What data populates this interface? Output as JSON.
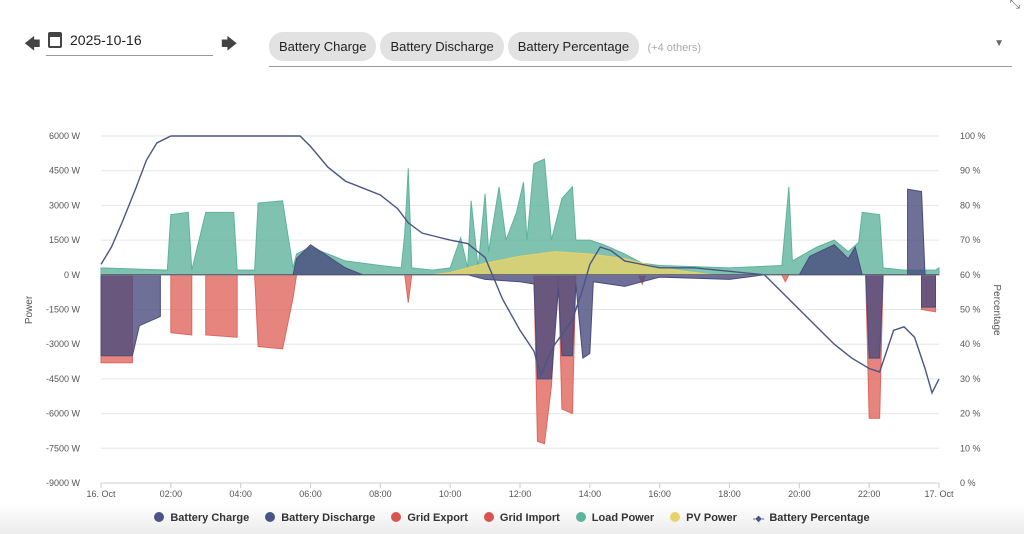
{
  "header": {
    "date": "2025-10-16",
    "prev": "prev-day",
    "next": "next-day",
    "chips": [
      "Battery Charge",
      "Battery Discharge",
      "Battery Percentage"
    ],
    "others": "(+4 others)"
  },
  "chart_data": {
    "type": "area",
    "xlabel": "",
    "ylabel": "Power",
    "y2label": "Percentage",
    "xlim": [
      0,
      24
    ],
    "ylim": [
      -9000,
      6000
    ],
    "y2lim": [
      0,
      100
    ],
    "xticks": [
      {
        "h": 0,
        "label": "16. Oct"
      },
      {
        "h": 2,
        "label": "02:00"
      },
      {
        "h": 4,
        "label": "04:00"
      },
      {
        "h": 6,
        "label": "06:00"
      },
      {
        "h": 8,
        "label": "08:00"
      },
      {
        "h": 10,
        "label": "10:00"
      },
      {
        "h": 12,
        "label": "12:00"
      },
      {
        "h": 14,
        "label": "14:00"
      },
      {
        "h": 16,
        "label": "16:00"
      },
      {
        "h": 18,
        "label": "18:00"
      },
      {
        "h": 20,
        "label": "20:00"
      },
      {
        "h": 22,
        "label": "22:00"
      },
      {
        "h": 24,
        "label": "17. Oct"
      }
    ],
    "yticks": [
      {
        "v": 6000,
        "label": "6000 W"
      },
      {
        "v": 4500,
        "label": "4500 W"
      },
      {
        "v": 3000,
        "label": "3000 W"
      },
      {
        "v": 1500,
        "label": "1500 W"
      },
      {
        "v": 0,
        "label": "0 W"
      },
      {
        "v": -1500,
        "label": "-1500 W"
      },
      {
        "v": -3000,
        "label": "-3000 W"
      },
      {
        "v": -4500,
        "label": "-4500 W"
      },
      {
        "v": -6000,
        "label": "-6000 W"
      },
      {
        "v": -7500,
        "label": "-7500 W"
      },
      {
        "v": -9000,
        "label": "-9000 W"
      }
    ],
    "y2ticks": [
      {
        "v": 100,
        "label": "100 %"
      },
      {
        "v": 90,
        "label": "90 %"
      },
      {
        "v": 80,
        "label": "80 %"
      },
      {
        "v": 70,
        "label": "70 %"
      },
      {
        "v": 60,
        "label": "60 %"
      },
      {
        "v": 50,
        "label": "50 %"
      },
      {
        "v": 40,
        "label": "40 %"
      },
      {
        "v": 30,
        "label": "30 %"
      },
      {
        "v": 20,
        "label": "20 %"
      },
      {
        "v": 10,
        "label": "10 %"
      },
      {
        "v": 0,
        "label": "0 %"
      }
    ],
    "series": [
      {
        "name": "Grid Import",
        "color": "#e0655e",
        "axis": "power",
        "points": [
          [
            0,
            0
          ],
          [
            0,
            -3800
          ],
          [
            0.9,
            -3800
          ],
          [
            0.9,
            0
          ],
          [
            2,
            0
          ],
          [
            2,
            -2500
          ],
          [
            2.6,
            -2600
          ],
          [
            2.6,
            0
          ],
          [
            3,
            0
          ],
          [
            3,
            -2600
          ],
          [
            3.9,
            -2700
          ],
          [
            3.9,
            0
          ],
          [
            4.4,
            0
          ],
          [
            4.5,
            -3100
          ],
          [
            5.2,
            -3200
          ],
          [
            5.5,
            -1000
          ],
          [
            5.6,
            0
          ],
          [
            8.7,
            0
          ],
          [
            8.8,
            -1200
          ],
          [
            8.9,
            0
          ],
          [
            12.4,
            0
          ],
          [
            12.5,
            -7200
          ],
          [
            12.7,
            -7300
          ],
          [
            12.9,
            -4800
          ],
          [
            13.1,
            0
          ],
          [
            13.2,
            -5800
          ],
          [
            13.5,
            -6000
          ],
          [
            13.6,
            0
          ],
          [
            15.4,
            0
          ],
          [
            15.5,
            -400
          ],
          [
            15.6,
            0
          ],
          [
            19.5,
            0
          ],
          [
            19.6,
            -300
          ],
          [
            19.7,
            0
          ],
          [
            21.9,
            0
          ],
          [
            22,
            -6200
          ],
          [
            22.3,
            -6200
          ],
          [
            22.4,
            0
          ],
          [
            23.5,
            0
          ],
          [
            23.5,
            -1500
          ],
          [
            23.9,
            -1600
          ],
          [
            23.9,
            0
          ]
        ]
      },
      {
        "name": "Battery Discharge",
        "color": "#4a4c7e",
        "axis": "power",
        "points": [
          [
            0,
            0
          ],
          [
            0,
            -3500
          ],
          [
            0.9,
            -3500
          ],
          [
            1.1,
            -2200
          ],
          [
            1.7,
            -1800
          ],
          [
            1.7,
            0
          ],
          [
            10.5,
            0
          ],
          [
            11,
            -200
          ],
          [
            12,
            -300
          ],
          [
            12.4,
            -400
          ],
          [
            12.5,
            -4500
          ],
          [
            12.9,
            -4500
          ],
          [
            13.1,
            -600
          ],
          [
            13.2,
            -3500
          ],
          [
            13.5,
            -3500
          ],
          [
            13.6,
            -400
          ],
          [
            13.8,
            -3600
          ],
          [
            14,
            -3400
          ],
          [
            14.1,
            -300
          ],
          [
            15,
            -500
          ],
          [
            16,
            -100
          ],
          [
            18,
            -200
          ],
          [
            19,
            0
          ],
          [
            21.9,
            0
          ],
          [
            22,
            -3600
          ],
          [
            22.3,
            -3600
          ],
          [
            22.4,
            0
          ],
          [
            23.5,
            0
          ],
          [
            23.5,
            -1400
          ],
          [
            23.9,
            -1400
          ],
          [
            23.9,
            0
          ]
        ]
      },
      {
        "name": "Load Power",
        "color": "#5fb39b",
        "axis": "power",
        "points": [
          [
            0,
            0
          ],
          [
            0,
            300
          ],
          [
            1.9,
            200
          ],
          [
            2,
            2600
          ],
          [
            2.5,
            2700
          ],
          [
            2.6,
            200
          ],
          [
            3,
            2700
          ],
          [
            3.8,
            2700
          ],
          [
            3.9,
            200
          ],
          [
            4.4,
            200
          ],
          [
            4.5,
            3100
          ],
          [
            5.2,
            3200
          ],
          [
            5.5,
            300
          ],
          [
            5.6,
            900
          ],
          [
            6,
            1200
          ],
          [
            6.5,
            900
          ],
          [
            7,
            600
          ],
          [
            8,
            400
          ],
          [
            8.6,
            300
          ],
          [
            8.7,
            1800
          ],
          [
            8.8,
            4600
          ],
          [
            8.9,
            300
          ],
          [
            9.5,
            200
          ],
          [
            10,
            300
          ],
          [
            10.3,
            1600
          ],
          [
            10.5,
            300
          ],
          [
            10.6,
            3200
          ],
          [
            10.8,
            300
          ],
          [
            11,
            3500
          ],
          [
            11.1,
            1000
          ],
          [
            11.4,
            3800
          ],
          [
            11.6,
            1500
          ],
          [
            11.9,
            2700
          ],
          [
            12.1,
            4000
          ],
          [
            12.2,
            1500
          ],
          [
            12.4,
            4800
          ],
          [
            12.7,
            5000
          ],
          [
            12.9,
            1500
          ],
          [
            13.2,
            3300
          ],
          [
            13.5,
            3800
          ],
          [
            13.6,
            1500
          ],
          [
            14,
            1500
          ],
          [
            14.4,
            1300
          ],
          [
            15,
            900
          ],
          [
            15.5,
            500
          ],
          [
            16,
            400
          ],
          [
            18,
            300
          ],
          [
            19.5,
            400
          ],
          [
            19.7,
            3800
          ],
          [
            19.8,
            600
          ],
          [
            20.5,
            1200
          ],
          [
            21,
            1500
          ],
          [
            21.4,
            1000
          ],
          [
            21.7,
            1400
          ],
          [
            21.8,
            2700
          ],
          [
            22.3,
            2600
          ],
          [
            22.4,
            300
          ],
          [
            23,
            200
          ],
          [
            23.9,
            200
          ],
          [
            24,
            300
          ],
          [
            24,
            0
          ]
        ]
      },
      {
        "name": "PV Power",
        "color": "#e8d36a",
        "axis": "power",
        "points": [
          [
            0,
            0
          ],
          [
            9.5,
            0
          ],
          [
            10,
            100
          ],
          [
            11,
            500
          ],
          [
            12,
            800
          ],
          [
            13,
            1000
          ],
          [
            14,
            900
          ],
          [
            15,
            700
          ],
          [
            16,
            300
          ],
          [
            17,
            100
          ],
          [
            17.5,
            0
          ],
          [
            24,
            0
          ]
        ]
      },
      {
        "name": "Battery Charge",
        "color": "#4a4c7e",
        "axis": "power",
        "points": [
          [
            0,
            0
          ],
          [
            5.5,
            0
          ],
          [
            5.6,
            700
          ],
          [
            6,
            1300
          ],
          [
            6.5,
            800
          ],
          [
            7,
            300
          ],
          [
            7.5,
            0
          ],
          [
            20,
            0
          ],
          [
            20.3,
            800
          ],
          [
            21,
            1300
          ],
          [
            21.4,
            700
          ],
          [
            21.6,
            1200
          ],
          [
            21.8,
            0
          ],
          [
            23.1,
            0
          ],
          [
            23.1,
            3700
          ],
          [
            23.5,
            3600
          ],
          [
            23.6,
            0
          ],
          [
            24,
            0
          ]
        ]
      },
      {
        "name": "Battery Percentage",
        "color": "#4a5586",
        "axis": "percent",
        "line": true,
        "points": [
          [
            0,
            63
          ],
          [
            0.3,
            68
          ],
          [
            0.6,
            75
          ],
          [
            1,
            85
          ],
          [
            1.3,
            93
          ],
          [
            1.6,
            98
          ],
          [
            2,
            100
          ],
          [
            5.7,
            100
          ],
          [
            6,
            97
          ],
          [
            6.5,
            91
          ],
          [
            7,
            87
          ],
          [
            7.5,
            85
          ],
          [
            8,
            83
          ],
          [
            8.5,
            79
          ],
          [
            8.8,
            75
          ],
          [
            9.2,
            72
          ],
          [
            9.6,
            71
          ],
          [
            10,
            70
          ],
          [
            10.5,
            69
          ],
          [
            11,
            65
          ],
          [
            11.5,
            53
          ],
          [
            12,
            44
          ],
          [
            12.4,
            38
          ],
          [
            12.6,
            31
          ],
          [
            12.8,
            36
          ],
          [
            13,
            40
          ],
          [
            13.5,
            47
          ],
          [
            13.8,
            56
          ],
          [
            14,
            63
          ],
          [
            14.3,
            68
          ],
          [
            14.6,
            67
          ],
          [
            15,
            64
          ],
          [
            15.5,
            63
          ],
          [
            16,
            62
          ],
          [
            17,
            62
          ],
          [
            18,
            61
          ],
          [
            19,
            60
          ],
          [
            19.5,
            55
          ],
          [
            20,
            50
          ],
          [
            20.5,
            45
          ],
          [
            21,
            40
          ],
          [
            21.5,
            36
          ],
          [
            22,
            33
          ],
          [
            22.3,
            32
          ],
          [
            22.5,
            38
          ],
          [
            22.7,
            44
          ],
          [
            23,
            45
          ],
          [
            23.3,
            42
          ],
          [
            23.6,
            33
          ],
          [
            23.8,
            26
          ],
          [
            24,
            30
          ]
        ]
      }
    ],
    "legend": [
      {
        "name": "Battery Charge",
        "color": "#4a5586",
        "marker": "dot"
      },
      {
        "name": "Battery Discharge",
        "color": "#4a5586",
        "marker": "dot"
      },
      {
        "name": "Grid Export",
        "color": "#d9534f",
        "marker": "dot"
      },
      {
        "name": "Grid Import",
        "color": "#d9534f",
        "marker": "dot"
      },
      {
        "name": "Load Power",
        "color": "#5fb39b",
        "marker": "dot"
      },
      {
        "name": "PV Power",
        "color": "#e8d36a",
        "marker": "dot"
      },
      {
        "name": "Battery Percentage",
        "color": "#4a5586",
        "marker": "line"
      }
    ],
    "legend_position": "bottom"
  }
}
